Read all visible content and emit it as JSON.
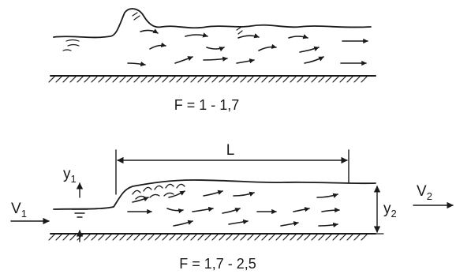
{
  "panel_a": {
    "froude_label": "F = 1 - 1,7"
  },
  "panel_b": {
    "froude_label": "F = 1,7 - 2,5",
    "length_label": "L",
    "y1_main": "y",
    "y1_sub": "1",
    "y2_main": "y",
    "y2_sub": "2",
    "v1_main": "V",
    "v1_sub": "1",
    "v2_main": "V",
    "v2_sub": "2"
  },
  "colors": {
    "ink": "#1a1a1a",
    "background": "#ffffff"
  }
}
